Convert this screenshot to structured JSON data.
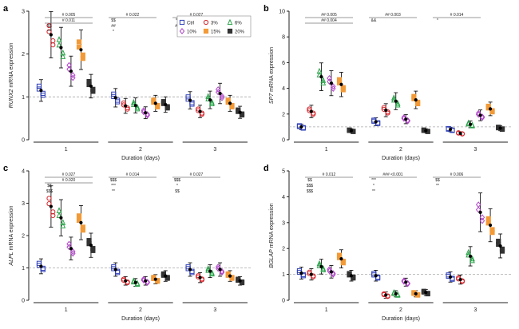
{
  "figure": {
    "legend_labels": [
      "Ctrl",
      "3%",
      "6%",
      "10%",
      "15%",
      "20%"
    ]
  },
  "chart_data": [
    {
      "panel_letter": "a",
      "type": "scatter",
      "ylabel_gene": "RUNX2",
      "ylabel_rest": " mRNA expression",
      "xlabel": "Duration (days)",
      "categories": [
        "1",
        "2",
        "3"
      ],
      "ylim": [
        0,
        3
      ],
      "yticks": [
        0,
        1,
        2,
        3
      ],
      "baseline": 1,
      "series": [
        {
          "name": "Ctrl",
          "means": [
            1.15,
            0.98,
            0.92
          ]
        },
        {
          "name": "3%",
          "means": [
            2.45,
            0.79,
            0.66
          ]
        },
        {
          "name": "6%",
          "means": [
            2.15,
            0.8,
            0.93
          ]
        },
        {
          "name": "10%",
          "means": [
            1.6,
            0.63,
            1.08
          ]
        },
        {
          "name": "15%",
          "means": [
            2.1,
            0.85,
            0.85
          ]
        },
        {
          "name": "20%",
          "means": [
            1.25,
            0.82,
            0.64
          ]
        }
      ],
      "significance": [
        "# 0.005",
        "# 0.022",
        "# 0.027",
        "# 0.011",
        "$$",
        "**",
        "$$",
        "##",
        "##",
        "***",
        "*"
      ]
    },
    {
      "panel_letter": "b",
      "type": "scatter",
      "ylabel_gene": "SP7",
      "ylabel_rest": " mRNA expression",
      "xlabel": "Duration (days)",
      "categories": [
        "1",
        "2",
        "3"
      ],
      "ylim": [
        0,
        10
      ],
      "yticks": [
        0,
        2,
        4,
        6,
        8,
        10
      ],
      "baseline": 1,
      "series": [
        {
          "name": "Ctrl",
          "means": [
            1.0,
            1.4,
            0.8
          ]
        },
        {
          "name": "3%",
          "means": [
            2.2,
            2.3,
            0.5
          ]
        },
        {
          "name": "6%",
          "means": [
            4.9,
            3.0,
            1.2
          ]
        },
        {
          "name": "10%",
          "means": [
            4.4,
            1.6,
            1.9
          ]
        },
        {
          "name": "15%",
          "means": [
            4.3,
            3.1,
            2.4
          ]
        },
        {
          "name": "20%",
          "means": [
            0.7,
            0.7,
            0.9
          ]
        }
      ],
      "significance": [
        "## 0.005",
        "## 0.003",
        "# 0.014",
        "## 0.004",
        "&&",
        "*"
      ]
    },
    {
      "panel_letter": "c",
      "type": "scatter",
      "ylabel_gene": "ALPL",
      "ylabel_rest": " mRNA expression",
      "xlabel": "Duration (days)",
      "categories": [
        "1",
        "2",
        "3"
      ],
      "ylim": [
        0,
        4
      ],
      "yticks": [
        0,
        1,
        2,
        3,
        4
      ],
      "baseline": 1,
      "series": [
        {
          "name": "Ctrl",
          "means": [
            1.05,
            0.95,
            0.95
          ]
        },
        {
          "name": "3%",
          "means": [
            2.9,
            0.6,
            0.7
          ]
        },
        {
          "name": "6%",
          "means": [
            2.55,
            0.55,
            0.9
          ]
        },
        {
          "name": "10%",
          "means": [
            1.6,
            0.6,
            0.95
          ]
        },
        {
          "name": "15%",
          "means": [
            2.4,
            0.65,
            0.75
          ]
        },
        {
          "name": "20%",
          "means": [
            1.7,
            0.75,
            0.6
          ]
        }
      ],
      "significance": [
        "# 0.027",
        "# 0.014",
        "# 0.027",
        "# 0.020",
        "$$$",
        "$$$",
        "$$",
        "***",
        "*",
        "$$$",
        "**",
        "$$"
      ]
    },
    {
      "panel_letter": "d",
      "type": "scatter",
      "ylabel_gene": "BGLAP",
      "ylabel_rest": " mRNA expression",
      "xlabel": "Duration (days)",
      "categories": [
        "1",
        "2",
        "3"
      ],
      "ylim": [
        0,
        5
      ],
      "yticks": [
        0,
        1,
        2,
        3,
        4,
        5
      ],
      "baseline": 1,
      "series": [
        {
          "name": "Ctrl",
          "means": [
            1.05,
            0.95,
            0.9
          ]
        },
        {
          "name": "3%",
          "means": [
            1.0,
            0.2,
            0.8
          ]
        },
        {
          "name": "6%",
          "means": [
            1.3,
            0.25,
            1.7
          ]
        },
        {
          "name": "10%",
          "means": [
            1.1,
            0.7,
            3.4
          ]
        },
        {
          "name": "15%",
          "means": [
            1.6,
            0.25,
            2.9
          ]
        },
        {
          "name": "20%",
          "means": [
            0.95,
            0.3,
            2.1
          ]
        }
      ],
      "significance": [
        "# 0.012",
        "### <0.001",
        "# 0.006",
        "$$",
        "***",
        "$$",
        "$$$",
        "*",
        "**",
        "$$$",
        "**"
      ]
    }
  ]
}
